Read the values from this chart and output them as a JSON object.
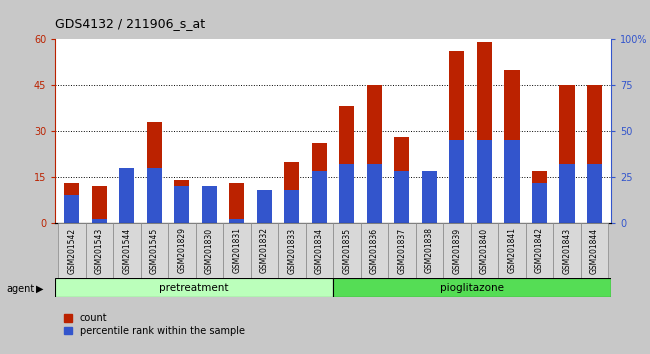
{
  "title": "GDS4132 / 211906_s_at",
  "samples": [
    "GSM201542",
    "GSM201543",
    "GSM201544",
    "GSM201545",
    "GSM201829",
    "GSM201830",
    "GSM201831",
    "GSM201832",
    "GSM201833",
    "GSM201834",
    "GSM201835",
    "GSM201836",
    "GSM201837",
    "GSM201838",
    "GSM201839",
    "GSM201840",
    "GSM201841",
    "GSM201842",
    "GSM201843",
    "GSM201844"
  ],
  "counts": [
    13,
    12,
    16,
    33,
    14,
    12,
    13,
    5,
    20,
    26,
    38,
    45,
    28,
    17,
    56,
    59,
    50,
    17,
    45,
    45
  ],
  "pct_raw": [
    15,
    2,
    30,
    30,
    20,
    20,
    2,
    18,
    18,
    28,
    32,
    32,
    28,
    28,
    45,
    45,
    45,
    22,
    32,
    32
  ],
  "count_color": "#bb2200",
  "percentile_color": "#3355cc",
  "ylim_left": [
    0,
    60
  ],
  "ylim_right": [
    0,
    100
  ],
  "yticks_left": [
    0,
    15,
    30,
    45,
    60
  ],
  "yticks_right": [
    0,
    25,
    50,
    75,
    100
  ],
  "yticklabels_right": [
    "0",
    "25",
    "50",
    "75",
    "100%"
  ],
  "group1_label": "pretreatment",
  "group2_label": "pioglitazone",
  "group1_n": 10,
  "group2_n": 10,
  "group1_color": "#bbffbb",
  "group2_color": "#55dd55",
  "agent_label": "agent",
  "legend_count": "count",
  "legend_percentile": "percentile rank within the sample",
  "bar_width": 0.55,
  "background_color": "#c8c8c8",
  "xtick_bg_color": "#d8d8d8",
  "plot_bg": "#ffffff",
  "title_fontsize": 9,
  "tick_fontsize": 6,
  "label_fontsize": 8
}
